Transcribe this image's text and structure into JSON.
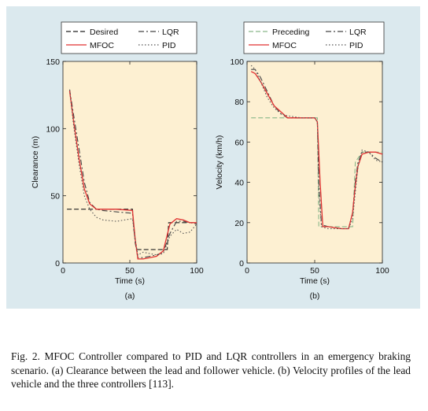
{
  "figure": {
    "background_color": "#dbe9ee",
    "plot_background_color": "#fdf0d2"
  },
  "chart_data": [
    {
      "type": "line",
      "panel_label": "(a)",
      "xlabel": "Time (s)",
      "ylabel": "Clearance (m)",
      "xlim": [
        0,
        100
      ],
      "ylim": [
        0,
        150
      ],
      "xticks": [
        0,
        50,
        100
      ],
      "yticks": [
        0,
        50,
        100,
        150
      ],
      "legend_position": "top",
      "series": [
        {
          "name": "Desired",
          "style": "dashed",
          "color": "#222222",
          "x": [
            3,
            20,
            30,
            40,
            52,
            53,
            55,
            60,
            70,
            78,
            79,
            85,
            90,
            100
          ],
          "y": [
            40,
            40,
            40,
            40,
            40,
            25,
            10,
            10,
            10,
            10,
            30,
            30,
            30,
            30
          ]
        },
        {
          "name": "LQR",
          "style": "dashdot",
          "color": "#444444",
          "x": [
            5,
            8,
            12,
            16,
            20,
            25,
            30,
            40,
            52,
            54,
            56,
            60,
            65,
            70,
            75,
            80,
            85,
            90,
            95,
            100
          ],
          "y": [
            129,
            110,
            85,
            60,
            45,
            40,
            39,
            38,
            37,
            15,
            4,
            4,
            5,
            6,
            8,
            22,
            31,
            31,
            30,
            29
          ]
        },
        {
          "name": "MFOC",
          "style": "solid",
          "color": "#e03030",
          "x": [
            5,
            8,
            12,
            16,
            20,
            25,
            30,
            40,
            52,
            54,
            56,
            60,
            65,
            70,
            75,
            80,
            85,
            90,
            95,
            100
          ],
          "y": [
            128,
            105,
            78,
            55,
            44,
            40,
            40,
            40,
            39,
            18,
            3,
            3,
            4,
            5,
            9,
            29,
            33,
            32,
            30,
            30
          ]
        },
        {
          "name": "PID",
          "style": "dotted",
          "color": "#555555",
          "x": [
            5,
            8,
            12,
            16,
            20,
            25,
            30,
            40,
            52,
            54,
            56,
            60,
            65,
            70,
            75,
            80,
            85,
            90,
            95,
            100
          ],
          "y": [
            129,
            102,
            74,
            50,
            40,
            34,
            32,
            31,
            33,
            18,
            6,
            8,
            7,
            6,
            7,
            20,
            25,
            22,
            23,
            29
          ]
        }
      ]
    },
    {
      "type": "line",
      "panel_label": "(b)",
      "xlabel": "Time (s)",
      "ylabel": "Velocity (km/h)",
      "xlim": [
        0,
        100
      ],
      "ylim": [
        0,
        100
      ],
      "xticks": [
        0,
        50,
        100
      ],
      "yticks": [
        0,
        20,
        40,
        60,
        80,
        100
      ],
      "legend_position": "top",
      "series": [
        {
          "name": "Preceding",
          "style": "dashed",
          "color": "#8ab88a",
          "x": [
            3,
            10,
            20,
            30,
            40,
            50,
            52,
            53,
            60,
            70,
            78,
            80,
            85,
            90,
            100
          ],
          "y": [
            72,
            72,
            72,
            72,
            72,
            72,
            72,
            18,
            18,
            18,
            18,
            50,
            55,
            55,
            55
          ]
        },
        {
          "name": "LQR",
          "style": "dashdot",
          "color": "#444444",
          "x": [
            3,
            6,
            10,
            15,
            20,
            25,
            30,
            40,
            50,
            52,
            53,
            55,
            60,
            70,
            75,
            78,
            80,
            82,
            85,
            90,
            95,
            100
          ],
          "y": [
            96,
            96,
            92,
            85,
            78,
            74,
            72,
            72,
            72,
            70,
            40,
            19,
            18,
            17,
            17,
            25,
            40,
            50,
            55,
            55,
            52,
            50
          ]
        },
        {
          "name": "MFOC",
          "style": "solid",
          "color": "#e03030",
          "x": [
            3,
            6,
            10,
            15,
            20,
            25,
            30,
            40,
            50,
            52,
            54,
            56,
            60,
            70,
            75,
            78,
            80,
            82,
            85,
            90,
            95,
            100
          ],
          "y": [
            95,
            94,
            90,
            84,
            78,
            75,
            72,
            72,
            72,
            70,
            40,
            18,
            18,
            17,
            17,
            25,
            38,
            48,
            54,
            55,
            55,
            54
          ]
        },
        {
          "name": "PID",
          "style": "dotted",
          "color": "#555555",
          "x": [
            3,
            6,
            10,
            15,
            20,
            25,
            30,
            40,
            50,
            52,
            53,
            55,
            60,
            70,
            75,
            78,
            80,
            82,
            85,
            90,
            95,
            100
          ],
          "y": [
            98,
            96,
            90,
            82,
            77,
            74,
            73,
            72,
            72,
            70,
            35,
            18,
            17,
            17,
            17,
            22,
            35,
            48,
            56,
            55,
            51,
            50
          ]
        }
      ]
    }
  ],
  "caption": {
    "lines": [
      "Fig. 2.   MFOC Controller compared to PID and LQR controllers in an",
      "emergency braking scenario. (a) Clearance between the lead and follower",
      "vehicle. (b) Velocity profiles of the lead vehicle and the three controllers",
      "[113]."
    ]
  }
}
